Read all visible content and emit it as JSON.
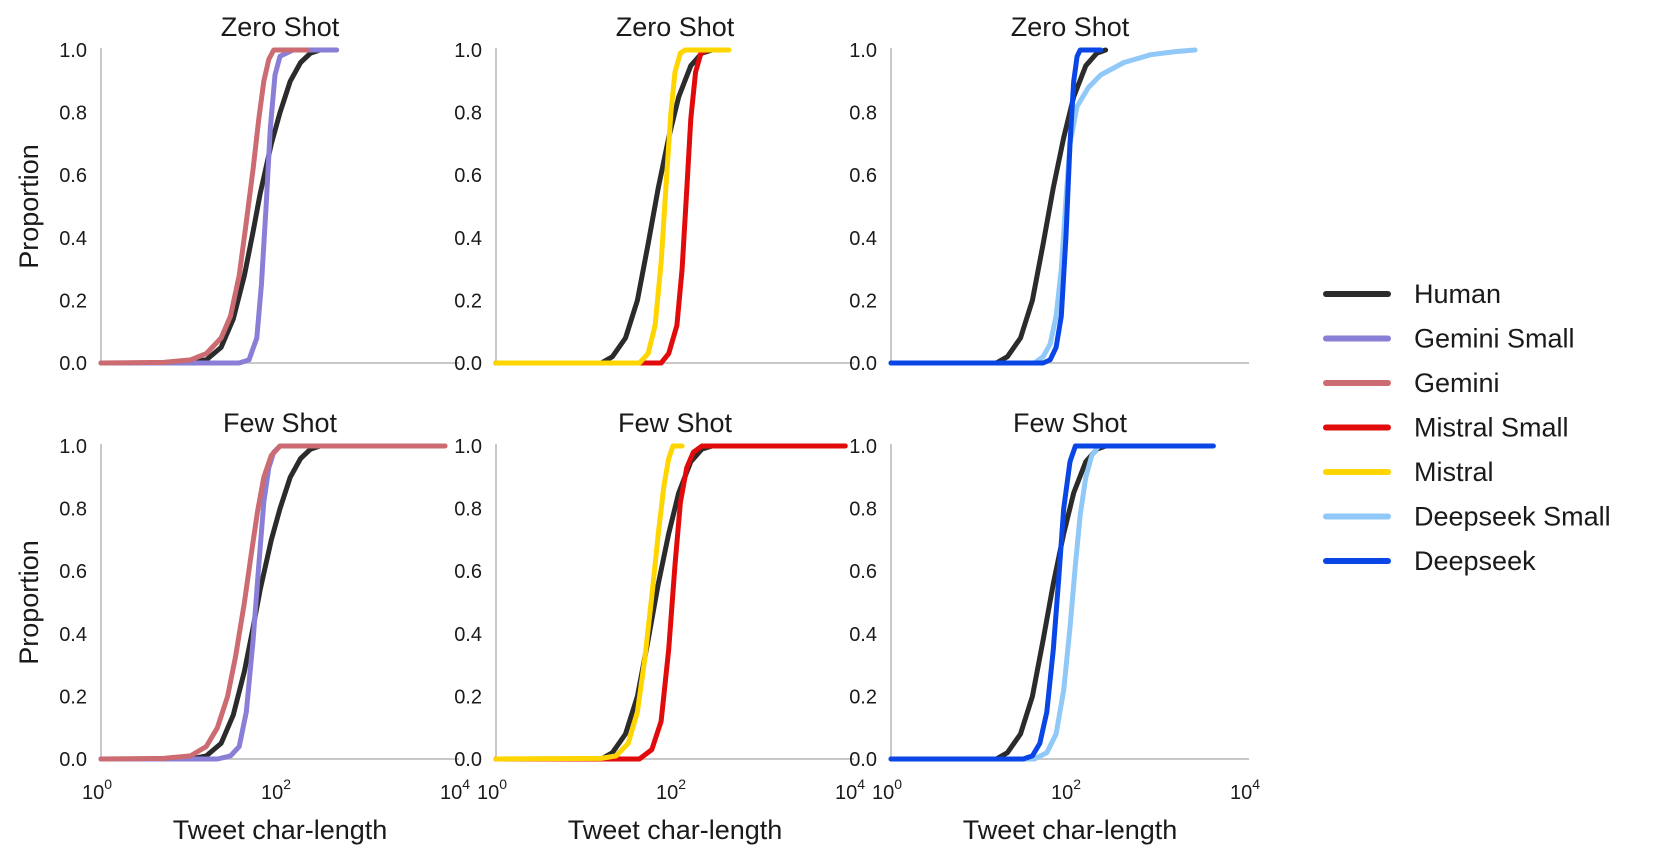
{
  "chart_data": {
    "type": "line",
    "description_kind": "empirical CDF grid (2 rows x 3 columns)",
    "xlabel": "Tweet char-length",
    "ylabel": "Proportion",
    "xscale": "log",
    "xlim": [
      1,
      10000
    ],
    "ylim": [
      0,
      1
    ],
    "x_ticks": [
      {
        "base": "10",
        "exp": "0"
      },
      {
        "base": "10",
        "exp": "2"
      },
      {
        "base": "10",
        "exp": "4"
      }
    ],
    "y_ticks": [
      "0.0",
      "0.2",
      "0.4",
      "0.6",
      "0.8",
      "1.0"
    ],
    "grid": false,
    "legend_position": "right",
    "series_styles": [
      {
        "name": "Human",
        "color": "#2b2b2b"
      },
      {
        "name": "Gemini Small",
        "color": "#8a7fd6"
      },
      {
        "name": "Gemini",
        "color": "#cc6b72"
      },
      {
        "name": "Mistral Small",
        "color": "#e10b0b"
      },
      {
        "name": "Mistral",
        "color": "#ffd500"
      },
      {
        "name": "Deepseek Small",
        "color": "#90c8f8"
      },
      {
        "name": "Deepseek",
        "color": "#0a45e6"
      }
    ],
    "panels": [
      {
        "title": "Zero Shot",
        "row": 0,
        "col": 0,
        "series": [
          {
            "name": "Human",
            "points": [
              [
                1,
                0
              ],
              [
                8,
                0
              ],
              [
                15,
                0.01
              ],
              [
                22,
                0.05
              ],
              [
                30,
                0.14
              ],
              [
                40,
                0.28
              ],
              [
                50,
                0.42
              ],
              [
                60,
                0.54
              ],
              [
                80,
                0.7
              ],
              [
                100,
                0.8
              ],
              [
                130,
                0.9
              ],
              [
                170,
                0.96
              ],
              [
                220,
                0.99
              ],
              [
                280,
                1
              ]
            ]
          },
          {
            "name": "Gemini Small",
            "points": [
              [
                1,
                0
              ],
              [
                35,
                0
              ],
              [
                45,
                0.01
              ],
              [
                55,
                0.08
              ],
              [
                62,
                0.25
              ],
              [
                70,
                0.5
              ],
              [
                78,
                0.75
              ],
              [
                88,
                0.92
              ],
              [
                100,
                0.98
              ],
              [
                140,
                1
              ],
              [
                430,
                1
              ]
            ]
          },
          {
            "name": "Gemini",
            "points": [
              [
                1,
                0
              ],
              [
                5,
                0.002
              ],
              [
                10,
                0.01
              ],
              [
                15,
                0.03
              ],
              [
                22,
                0.08
              ],
              [
                28,
                0.15
              ],
              [
                35,
                0.28
              ],
              [
                42,
                0.45
              ],
              [
                50,
                0.62
              ],
              [
                58,
                0.78
              ],
              [
                66,
                0.9
              ],
              [
                75,
                0.97
              ],
              [
                85,
                1
              ],
              [
                200,
                1
              ]
            ]
          }
        ]
      },
      {
        "title": "Zero Shot",
        "row": 0,
        "col": 1,
        "series": [
          {
            "name": "Human",
            "points": [
              [
                1,
                0
              ],
              [
                15,
                0
              ],
              [
                20,
                0.02
              ],
              [
                28,
                0.08
              ],
              [
                38,
                0.2
              ],
              [
                50,
                0.38
              ],
              [
                65,
                0.56
              ],
              [
                85,
                0.72
              ],
              [
                110,
                0.85
              ],
              [
                150,
                0.95
              ],
              [
                200,
                0.99
              ],
              [
                260,
                1
              ]
            ]
          },
          {
            "name": "Mistral Small",
            "points": [
              [
                1,
                0
              ],
              [
                70,
                0
              ],
              [
                85,
                0.03
              ],
              [
                105,
                0.12
              ],
              [
                120,
                0.3
              ],
              [
                135,
                0.55
              ],
              [
                150,
                0.78
              ],
              [
                170,
                0.93
              ],
              [
                195,
                0.99
              ],
              [
                230,
                1
              ],
              [
                300,
                1
              ]
            ]
          },
          {
            "name": "Mistral",
            "points": [
              [
                1,
                0
              ],
              [
                40,
                0
              ],
              [
                50,
                0.03
              ],
              [
                60,
                0.12
              ],
              [
                70,
                0.32
              ],
              [
                80,
                0.58
              ],
              [
                90,
                0.8
              ],
              [
                100,
                0.93
              ],
              [
                115,
                0.99
              ],
              [
                130,
                1
              ],
              [
                400,
                1
              ]
            ]
          }
        ]
      },
      {
        "title": "Zero Shot",
        "row": 0,
        "col": 2,
        "series": [
          {
            "name": "Human",
            "points": [
              [
                1,
                0
              ],
              [
                15,
                0
              ],
              [
                20,
                0.02
              ],
              [
                28,
                0.08
              ],
              [
                38,
                0.2
              ],
              [
                50,
                0.38
              ],
              [
                65,
                0.56
              ],
              [
                85,
                0.72
              ],
              [
                110,
                0.85
              ],
              [
                150,
                0.95
              ],
              [
                200,
                0.99
              ],
              [
                250,
                1
              ]
            ]
          },
          {
            "name": "Deepseek Small",
            "points": [
              [
                1,
                0
              ],
              [
                40,
                0
              ],
              [
                50,
                0.02
              ],
              [
                60,
                0.06
              ],
              [
                70,
                0.15
              ],
              [
                80,
                0.3
              ],
              [
                90,
                0.52
              ],
              [
                100,
                0.7
              ],
              [
                120,
                0.82
              ],
              [
                160,
                0.88
              ],
              [
                220,
                0.92
              ],
              [
                400,
                0.96
              ],
              [
                800,
                0.985
              ],
              [
                1500,
                0.995
              ],
              [
                2500,
                1
              ]
            ]
          },
          {
            "name": "Deepseek",
            "points": [
              [
                1,
                0
              ],
              [
                50,
                0
              ],
              [
                60,
                0.01
              ],
              [
                70,
                0.05
              ],
              [
                80,
                0.15
              ],
              [
                90,
                0.4
              ],
              [
                100,
                0.7
              ],
              [
                110,
                0.9
              ],
              [
                120,
                0.98
              ],
              [
                130,
                1
              ],
              [
                220,
                1
              ]
            ]
          }
        ]
      },
      {
        "title": "Few Shot",
        "row": 1,
        "col": 0,
        "series": [
          {
            "name": "Human",
            "points": [
              [
                1,
                0
              ],
              [
                10,
                0
              ],
              [
                15,
                0.01
              ],
              [
                22,
                0.05
              ],
              [
                30,
                0.14
              ],
              [
                40,
                0.28
              ],
              [
                50,
                0.42
              ],
              [
                60,
                0.54
              ],
              [
                80,
                0.7
              ],
              [
                100,
                0.8
              ],
              [
                130,
                0.9
              ],
              [
                170,
                0.96
              ],
              [
                220,
                0.99
              ],
              [
                280,
                1
              ]
            ]
          },
          {
            "name": "Gemini Small",
            "points": [
              [
                1,
                0
              ],
              [
                20,
                0
              ],
              [
                28,
                0.01
              ],
              [
                35,
                0.04
              ],
              [
                42,
                0.15
              ],
              [
                50,
                0.38
              ],
              [
                58,
                0.62
              ],
              [
                66,
                0.82
              ],
              [
                75,
                0.93
              ],
              [
                85,
                0.98
              ],
              [
                100,
                1
              ],
              [
                150,
                1
              ]
            ]
          },
          {
            "name": "Gemini",
            "points": [
              [
                1,
                0
              ],
              [
                5,
                0.002
              ],
              [
                10,
                0.01
              ],
              [
                15,
                0.04
              ],
              [
                20,
                0.1
              ],
              [
                26,
                0.2
              ],
              [
                32,
                0.33
              ],
              [
                40,
                0.5
              ],
              [
                48,
                0.66
              ],
              [
                56,
                0.79
              ],
              [
                66,
                0.9
              ],
              [
                80,
                0.97
              ],
              [
                100,
                1
              ],
              [
                7000,
                1
              ]
            ]
          }
        ]
      },
      {
        "title": "Few Shot",
        "row": 1,
        "col": 1,
        "series": [
          {
            "name": "Human",
            "points": [
              [
                1,
                0
              ],
              [
                15,
                0
              ],
              [
                20,
                0.02
              ],
              [
                28,
                0.08
              ],
              [
                38,
                0.2
              ],
              [
                50,
                0.38
              ],
              [
                65,
                0.56
              ],
              [
                85,
                0.72
              ],
              [
                110,
                0.85
              ],
              [
                150,
                0.95
              ],
              [
                200,
                0.99
              ],
              [
                260,
                1
              ]
            ]
          },
          {
            "name": "Mistral Small",
            "points": [
              [
                1,
                0
              ],
              [
                40,
                0
              ],
              [
                55,
                0.03
              ],
              [
                70,
                0.12
              ],
              [
                85,
                0.35
              ],
              [
                100,
                0.62
              ],
              [
                115,
                0.82
              ],
              [
                135,
                0.93
              ],
              [
                160,
                0.98
              ],
              [
                200,
                1
              ],
              [
                8000,
                1
              ]
            ]
          },
          {
            "name": "Mistral",
            "points": [
              [
                1,
                0
              ],
              [
                15,
                0.002
              ],
              [
                22,
                0.01
              ],
              [
                30,
                0.05
              ],
              [
                38,
                0.15
              ],
              [
                46,
                0.32
              ],
              [
                55,
                0.52
              ],
              [
                65,
                0.72
              ],
              [
                75,
                0.87
              ],
              [
                85,
                0.96
              ],
              [
                95,
                1
              ],
              [
                120,
                1
              ]
            ]
          }
        ]
      },
      {
        "title": "Few Shot",
        "row": 1,
        "col": 2,
        "series": [
          {
            "name": "Human",
            "points": [
              [
                1,
                0
              ],
              [
                15,
                0
              ],
              [
                20,
                0.02
              ],
              [
                28,
                0.08
              ],
              [
                38,
                0.2
              ],
              [
                50,
                0.38
              ],
              [
                65,
                0.56
              ],
              [
                85,
                0.72
              ],
              [
                110,
                0.85
              ],
              [
                150,
                0.95
              ],
              [
                200,
                0.99
              ],
              [
                250,
                1
              ]
            ]
          },
          {
            "name": "Deepseek Small",
            "points": [
              [
                1,
                0
              ],
              [
                40,
                0
              ],
              [
                55,
                0.02
              ],
              [
                70,
                0.08
              ],
              [
                85,
                0.22
              ],
              [
                100,
                0.42
              ],
              [
                115,
                0.62
              ],
              [
                130,
                0.78
              ],
              [
                150,
                0.9
              ],
              [
                175,
                0.97
              ],
              [
                210,
                1
              ],
              [
                300,
                1
              ]
            ]
          },
          {
            "name": "Deepseek",
            "points": [
              [
                1,
                0
              ],
              [
                30,
                0
              ],
              [
                38,
                0.01
              ],
              [
                46,
                0.05
              ],
              [
                55,
                0.15
              ],
              [
                65,
                0.35
              ],
              [
                75,
                0.58
              ],
              [
                85,
                0.8
              ],
              [
                100,
                0.95
              ],
              [
                115,
                1
              ],
              [
                4000,
                1
              ]
            ]
          }
        ]
      }
    ]
  }
}
